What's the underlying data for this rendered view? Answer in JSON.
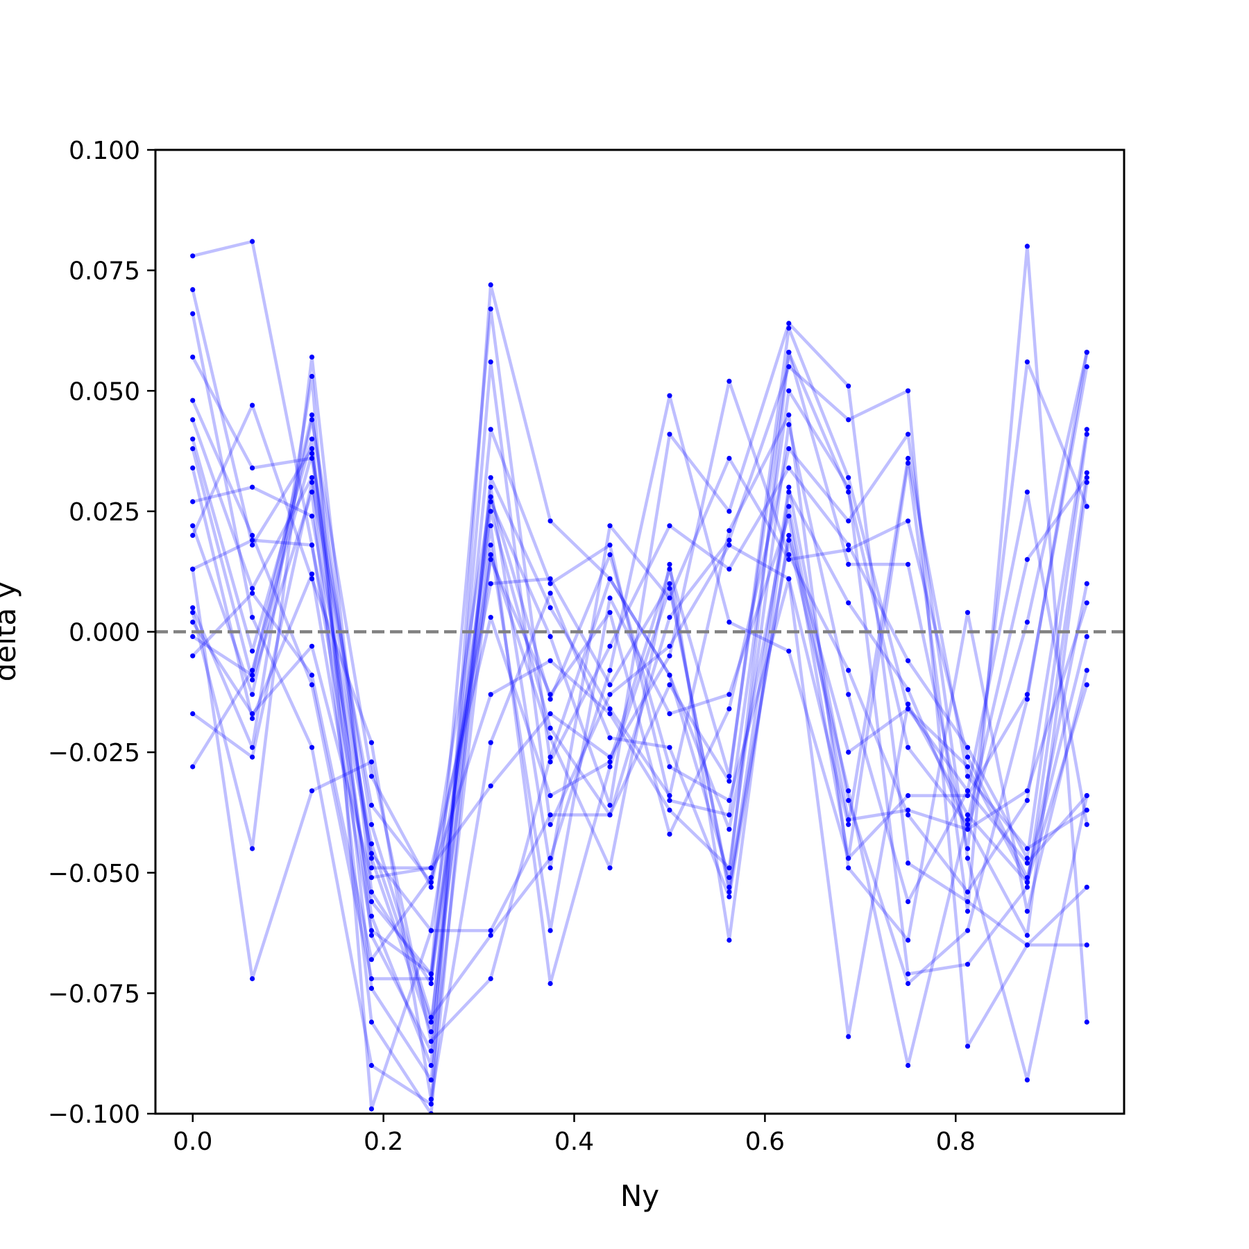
{
  "chart_data": {
    "type": "line",
    "title": "",
    "xlabel": "Ny",
    "ylabel": "delta y",
    "xlim": [
      -0.0391,
      0.9766
    ],
    "ylim": [
      -0.1,
      0.1
    ],
    "x": [
      0.0,
      0.0625,
      0.125,
      0.1875,
      0.25,
      0.3125,
      0.375,
      0.4375,
      0.5,
      0.5625,
      0.625,
      0.6875,
      0.75,
      0.8125,
      0.875,
      0.9375
    ],
    "xticks": [
      "0.0",
      "0.2",
      "0.4",
      "0.6",
      "0.8"
    ],
    "xtick_values": [
      0.0,
      0.2,
      0.4,
      0.6,
      0.8
    ],
    "yticks": [
      "0.100",
      "0.075",
      "0.050",
      "0.025",
      "0.000",
      "−0.025",
      "−0.050",
      "−0.075",
      "−0.100"
    ],
    "ytick_values": [
      0.1,
      0.075,
      0.05,
      0.025,
      0.0,
      -0.025,
      -0.05,
      -0.075,
      -0.1
    ],
    "reference_line": {
      "y": 0.0,
      "style": "dashed",
      "color": "#808080"
    },
    "line_color": "#0000ff",
    "line_alpha": 0.25,
    "marker_color": "#0000ff",
    "grid": false,
    "legend": "none",
    "series": [
      {
        "values": [
          0.078,
          0.081,
          0.018,
          -0.046,
          -0.062,
          -0.062,
          -0.038,
          -0.038,
          0.003,
          0.019,
          0.055,
          0.044,
          0.05,
          -0.086,
          -0.065,
          -0.065
        ]
      },
      {
        "values": [
          0.071,
          0.018,
          0.038,
          -0.063,
          -0.087,
          0.03,
          -0.049,
          0.022,
          0.007,
          0.036,
          0.015,
          0.017,
          0.023,
          -0.026,
          -0.051,
          -0.001
        ]
      },
      {
        "values": [
          0.066,
          0.003,
          -0.024,
          -0.09,
          -0.098,
          0.072,
          0.023,
          0.011,
          -0.009,
          -0.041,
          0.026,
          -0.039,
          -0.037,
          -0.041,
          0.002,
          0.058
        ]
      },
      {
        "values": [
          0.057,
          0.034,
          0.036,
          -0.047,
          -0.083,
          0.042,
          0.01,
          0.018,
          -0.035,
          -0.038,
          0.05,
          0.03,
          -0.071,
          -0.069,
          -0.053,
          0.033
        ]
      },
      {
        "values": [
          0.048,
          0.02,
          -0.011,
          -0.072,
          -0.072,
          0.027,
          -0.001,
          -0.036,
          0.041,
          0.025,
          0.064,
          0.051,
          -0.048,
          -0.056,
          -0.065,
          -0.053
        ]
      },
      {
        "values": [
          0.044,
          0.009,
          0.032,
          -0.059,
          -0.09,
          0.056,
          -0.04,
          -0.013,
          -0.003,
          0.018,
          0.011,
          -0.04,
          0.036,
          -0.03,
          -0.045,
          -0.037
        ]
      },
      {
        "values": [
          0.04,
          -0.004,
          0.04,
          -0.074,
          -0.093,
          0.016,
          -0.022,
          -0.049,
          0.014,
          -0.064,
          0.029,
          0.006,
          -0.012,
          -0.041,
          -0.033,
          0.006
        ]
      },
      {
        "values": [
          0.038,
          -0.01,
          0.029,
          -0.081,
          -0.1,
          0.032,
          0.005,
          -0.016,
          -0.034,
          0.021,
          0.045,
          -0.049,
          -0.064,
          0.004,
          -0.058,
          -0.008
        ]
      },
      {
        "values": [
          0.034,
          -0.018,
          0.012,
          -0.062,
          -0.071,
          0.067,
          -0.027,
          -0.003,
          0.022,
          0.013,
          0.034,
          0.018,
          -0.006,
          -0.024,
          -0.047,
          0.041
        ]
      },
      {
        "values": [
          0.027,
          0.03,
          0.024,
          -0.044,
          -0.081,
          0.018,
          -0.062,
          0.007,
          -0.017,
          -0.013,
          0.024,
          -0.047,
          0.035,
          -0.058,
          0.08,
          -0.081
        ]
      },
      {
        "values": [
          0.022,
          -0.013,
          0.044,
          -0.03,
          -0.053,
          0.01,
          0.011,
          -0.011,
          0.01,
          -0.054,
          0.03,
          -0.035,
          -0.073,
          -0.062,
          -0.014,
          0.058
        ]
      },
      {
        "values": [
          0.02,
          0.047,
          0.011,
          -0.023,
          -0.097,
          -0.023,
          0.008,
          -0.022,
          -0.024,
          -0.055,
          0.02,
          -0.025,
          -0.016,
          -0.033,
          0.029,
          -0.04
        ]
      },
      {
        "values": [
          0.013,
          0.019,
          0.018,
          -0.056,
          -0.071,
          0.025,
          -0.02,
          -0.038,
          -0.011,
          -0.031,
          0.063,
          0.032,
          -0.016,
          -0.028,
          -0.052,
          -0.011
        ]
      },
      {
        "values": [
          0.005,
          -0.024,
          0.053,
          -0.099,
          -0.062,
          0.015,
          -0.013,
          0.004,
          -0.042,
          -0.016,
          0.038,
          0.023,
          0.041,
          -0.047,
          -0.093,
          -0.034
        ]
      },
      {
        "values": [
          0.002,
          -0.017,
          -0.003,
          -0.051,
          -0.049,
          0.003,
          -0.034,
          -0.027,
          0.013,
          -0.03,
          0.058,
          0.014,
          0.014,
          -0.045,
          0.056,
          0.026
        ]
      },
      {
        "values": [
          -0.001,
          -0.009,
          0.045,
          -0.049,
          -0.049,
          -0.032,
          -0.017,
          -0.026,
          -0.005,
          0.052,
          0.016,
          -0.008,
          -0.038,
          -0.054,
          -0.035,
          0.042
        ]
      },
      {
        "values": [
          -0.005,
          0.008,
          -0.009,
          -0.068,
          -0.051,
          -0.013,
          -0.006,
          -0.017,
          -0.037,
          -0.049,
          0.043,
          -0.013,
          -0.056,
          -0.033,
          -0.048,
          -0.034
        ]
      },
      {
        "values": [
          -0.017,
          -0.026,
          0.031,
          -0.036,
          -0.052,
          0.028,
          -0.014,
          0.016,
          -0.028,
          -0.035,
          0.011,
          -0.084,
          -0.015,
          -0.038,
          -0.052,
          0.01
        ]
      },
      {
        "values": [
          -0.028,
          -0.008,
          0.037,
          -0.04,
          -0.08,
          -0.063,
          -0.047,
          -0.008,
          0.049,
          0.002,
          -0.004,
          -0.047,
          -0.034,
          -0.034,
          -0.013,
          0.055
        ]
      },
      {
        "values": [
          0.013,
          -0.072,
          -0.033,
          -0.027,
          -0.085,
          -0.072,
          -0.026,
          0.011,
          -0.009,
          -0.051,
          0.058,
          0.029,
          -0.024,
          -0.04,
          -0.063,
          0.031
        ]
      },
      {
        "values": [
          0.004,
          -0.045,
          0.057,
          -0.054,
          -0.073,
          0.022,
          -0.073,
          -0.028,
          0.009,
          -0.053,
          0.019,
          -0.033,
          -0.09,
          -0.039,
          0.015,
          0.032
        ]
      }
    ]
  }
}
